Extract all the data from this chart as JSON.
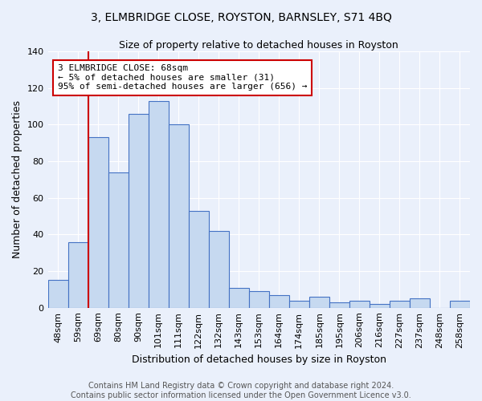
{
  "title": "3, ELMBRIDGE CLOSE, ROYSTON, BARNSLEY, S71 4BQ",
  "subtitle": "Size of property relative to detached houses in Royston",
  "xlabel": "Distribution of detached houses by size in Royston",
  "ylabel": "Number of detached properties",
  "categories": [
    "48sqm",
    "59sqm",
    "69sqm",
    "80sqm",
    "90sqm",
    "101sqm",
    "111sqm",
    "122sqm",
    "132sqm",
    "143sqm",
    "153sqm",
    "164sqm",
    "174sqm",
    "185sqm",
    "195sqm",
    "206sqm",
    "216sqm",
    "227sqm",
    "237sqm",
    "248sqm",
    "258sqm"
  ],
  "values": [
    15,
    36,
    93,
    74,
    106,
    113,
    100,
    53,
    42,
    11,
    9,
    7,
    4,
    6,
    3,
    4,
    2,
    4,
    5,
    0,
    4
  ],
  "bar_color": "#c6d9f0",
  "bar_edge_color": "#4472c4",
  "red_line_index": 2,
  "annotation_text": "3 ELMBRIDGE CLOSE: 68sqm\n← 5% of detached houses are smaller (31)\n95% of semi-detached houses are larger (656) →",
  "annotation_box_color": "#ffffff",
  "annotation_box_edge_color": "#cc0000",
  "red_line_color": "#cc0000",
  "ylim": [
    0,
    140
  ],
  "yticks": [
    0,
    20,
    40,
    60,
    80,
    100,
    120,
    140
  ],
  "footer_line1": "Contains HM Land Registry data © Crown copyright and database right 2024.",
  "footer_line2": "Contains public sector information licensed under the Open Government Licence v3.0.",
  "background_color": "#eaf0fb",
  "grid_color": "#ffffff",
  "title_fontsize": 10,
  "subtitle_fontsize": 9,
  "axis_label_fontsize": 9,
  "tick_fontsize": 8,
  "annotation_fontsize": 8,
  "footer_fontsize": 7
}
